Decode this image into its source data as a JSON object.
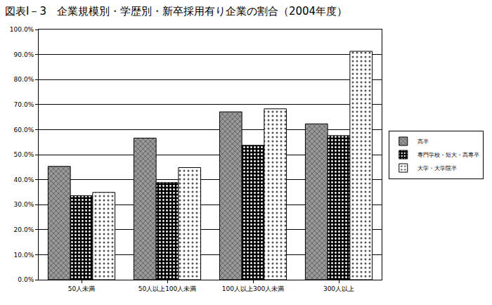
{
  "chart_data": {
    "type": "bar",
    "title": "図表Ⅰ－3　企業規模別・学歴別・新卒採用有り企業の割合（2004年度）",
    "categories": [
      "50人未満",
      "50人以上100人未満",
      "100人以上300人未満",
      "300人以上"
    ],
    "series": [
      {
        "name": "高卒",
        "color": "#9a9a9a",
        "values": [
          45.3,
          56.6,
          67.1,
          62.3
        ]
      },
      {
        "name": "専門学校・短大・高専卒",
        "color": "#000000",
        "values": [
          33.6,
          38.8,
          53.7,
          57.6
        ]
      },
      {
        "name": "大学・大学院卒",
        "color": "#ffffff",
        "values": [
          34.9,
          44.8,
          68.3,
          91.3
        ]
      }
    ],
    "ylim": [
      0,
      100
    ],
    "yticks": [
      {
        "value": 0,
        "label": "0.0%"
      },
      {
        "value": 10,
        "label": "10.0%"
      },
      {
        "value": 20,
        "label": "20.0%"
      },
      {
        "value": 30,
        "label": "30.0%"
      },
      {
        "value": 40,
        "label": "40.0%"
      },
      {
        "value": 50,
        "label": "50.0%"
      },
      {
        "value": 60,
        "label": "60.0%"
      },
      {
        "value": 70,
        "label": "70.0%"
      },
      {
        "value": 80,
        "label": "80.0%"
      },
      {
        "value": 90,
        "label": "90.0%"
      },
      {
        "value": 100,
        "label": "100.0%"
      }
    ],
    "grid": true,
    "legend": "right"
  }
}
